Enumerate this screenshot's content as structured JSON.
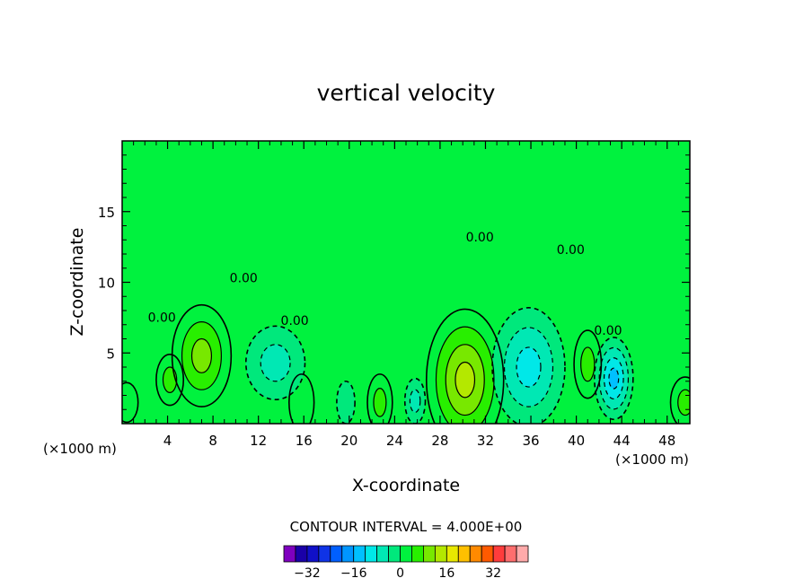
{
  "chart_data": {
    "type": "heatmap",
    "subtype": "filled contour plot",
    "title": "vertical velocity",
    "xlabel": "X-coordinate",
    "ylabel": "Z-coordinate",
    "x_units": "(×1000 m)",
    "y_units": "(×1000 m)",
    "xlim": [
      0,
      50
    ],
    "ylim": [
      0,
      20
    ],
    "x_ticks": [
      4,
      8,
      12,
      16,
      20,
      24,
      28,
      32,
      36,
      40,
      44,
      48
    ],
    "x_tick_labels": [
      "4",
      "8",
      "12",
      "16",
      "20",
      "24",
      "28",
      "32",
      "36",
      "40",
      "44",
      "48"
    ],
    "y_ticks": [
      5,
      10,
      15
    ],
    "y_tick_labels": [
      "5",
      "10",
      "15"
    ],
    "contour_interval_text": "CONTOUR INTERVAL = 4.000E+00",
    "contour_labels": [
      {
        "text": "0.00",
        "x": 3.5,
        "z": 7.2
      },
      {
        "text": "0.00",
        "x": 10.7,
        "z": 10.0
      },
      {
        "text": "0.00",
        "x": 15.2,
        "z": 7.0
      },
      {
        "text": "0.00",
        "x": 31.5,
        "z": 12.9
      },
      {
        "text": "0.00",
        "x": 39.5,
        "z": 12.0
      },
      {
        "text": "0.00",
        "x": 42.8,
        "z": 6.3
      }
    ],
    "background_level": 0,
    "features": [
      {
        "type": "updraft",
        "cx": 7.0,
        "cz": 4.8,
        "rx": 2.6,
        "rz": 3.6,
        "peak": 12
      },
      {
        "type": "updraft",
        "cx": 4.2,
        "cz": 3.1,
        "rx": 1.2,
        "rz": 1.8,
        "peak": 6
      },
      {
        "type": "updraft",
        "cx": 30.2,
        "cz": 3.1,
        "rx": 3.4,
        "rz": 5.0,
        "peak": 16
      },
      {
        "type": "updraft",
        "cx": 41.0,
        "cz": 4.2,
        "rx": 1.2,
        "rz": 2.4,
        "peak": 6
      },
      {
        "type": "updraft",
        "cx": 22.7,
        "cz": 1.5,
        "rx": 1.1,
        "rz": 2.0,
        "peak": 5
      },
      {
        "type": "updraft",
        "cx": 15.8,
        "cz": 1.5,
        "rx": 1.1,
        "rz": 2.0,
        "peak": 2.5
      },
      {
        "type": "updraft",
        "cx": 49.6,
        "cz": 1.5,
        "rx": 1.3,
        "rz": 1.8,
        "peak": 5
      },
      {
        "type": "updraft",
        "cx": 0.4,
        "cz": 1.5,
        "rx": 1.0,
        "rz": 1.4,
        "peak": 3
      },
      {
        "type": "downdraft",
        "cx": 35.8,
        "cz": 4.0,
        "rx": 3.2,
        "rz": 4.2,
        "peak": -10
      },
      {
        "type": "downdraft",
        "cx": 43.3,
        "cz": 3.2,
        "rx": 1.7,
        "rz": 2.9,
        "peak": -13
      },
      {
        "type": "downdraft",
        "cx": 13.5,
        "cz": 4.3,
        "rx": 2.6,
        "rz": 2.6,
        "peak": -5
      },
      {
        "type": "downdraft",
        "cx": 25.8,
        "cz": 1.6,
        "rx": 0.9,
        "rz": 1.6,
        "peak": -5
      },
      {
        "type": "downdraft",
        "cx": 19.7,
        "cz": 1.5,
        "rx": 0.8,
        "rz": 1.5,
        "peak": -4
      }
    ],
    "colorbar": {
      "levels": [
        -36,
        -32,
        -28,
        -24,
        -20,
        -16,
        -12,
        -8,
        -4,
        0,
        4,
        8,
        12,
        16,
        20,
        24,
        28,
        32,
        36
      ],
      "tick_values": [
        -32,
        -16,
        0,
        16,
        32
      ],
      "tick_labels": [
        "−32",
        "−16",
        "0",
        "16",
        "32"
      ],
      "colors": [
        "#7f00bf",
        "#1a00a8",
        "#1010c8",
        "#0f33e6",
        "#005fff",
        "#0096ff",
        "#00c0ff",
        "#00e8e8",
        "#00e8b4",
        "#00e87c",
        "#00f23e",
        "#28ef00",
        "#78e800",
        "#b4e800",
        "#e8e800",
        "#ffc000",
        "#ff8a00",
        "#ff5a00",
        "#ff3c3c",
        "#ff6e6e",
        "#ffaaaa"
      ]
    }
  }
}
